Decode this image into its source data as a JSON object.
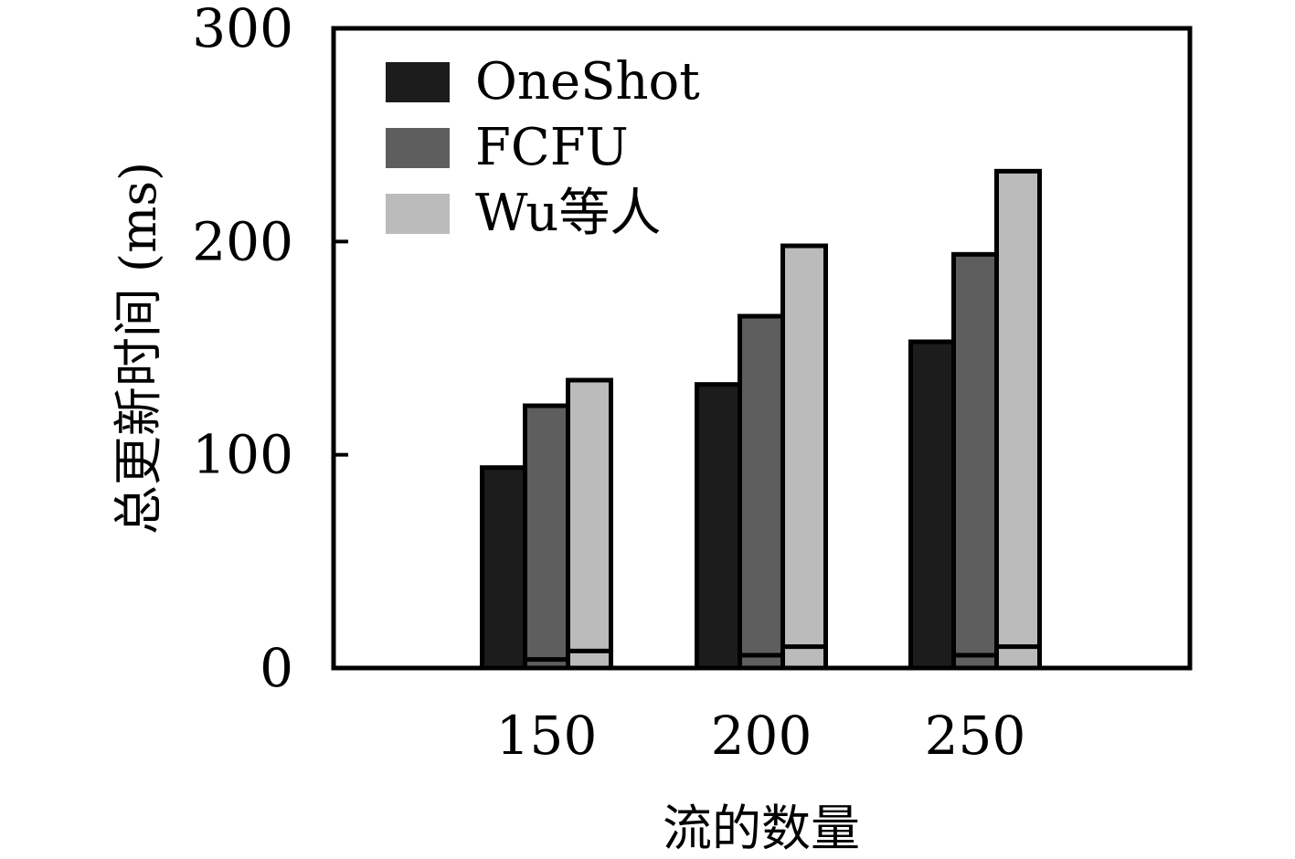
{
  "chart_data": {
    "type": "bar",
    "title": "",
    "xlabel": "流的数量",
    "ylabel": "总更新时间 (ms)",
    "ylim": [
      0,
      300
    ],
    "yticks": [
      0,
      100,
      200,
      300
    ],
    "grid": false,
    "legend_position": "top-left",
    "categories": [
      "150",
      "200",
      "250"
    ],
    "series": [
      {
        "name": "OneShot",
        "color": "#1c1c1c",
        "values": [
          94,
          133,
          153
        ],
        "inner_values": [
          0,
          0,
          0
        ]
      },
      {
        "name": "FCFU",
        "color": "#5e5e5e",
        "values": [
          123,
          165,
          194
        ],
        "inner_values": [
          4,
          6,
          6
        ]
      },
      {
        "name": "Wu等人",
        "color": "#bbbbbb",
        "values": [
          135,
          198,
          233
        ],
        "inner_values": [
          8,
          10,
          10
        ]
      }
    ]
  }
}
